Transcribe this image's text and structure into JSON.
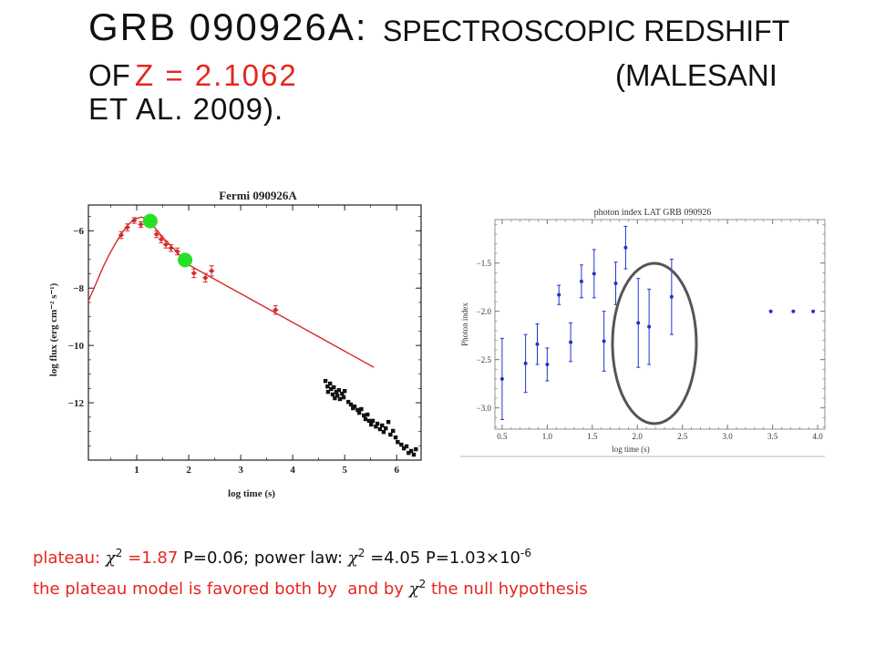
{
  "theme": {
    "accent_red": "#e5261e",
    "text_black": "#111111",
    "lat_blue": "#2233cc",
    "highlight_gray": "#555555"
  },
  "title": {
    "prefix": "GRB 090926A:",
    "subtitle_caps": "SPECTROSCOPIC REDSHIFT",
    "of": "OF",
    "redshift": "Z = 2.1062",
    "citation_start": "(MALESANI",
    "citation_end": "ET AL. 2009)."
  },
  "notes": {
    "line1": {
      "plateau_label": "plateau:",
      "chi_symbol": "χ",
      "chi_exponent": "2",
      "plateau_chi2": "=1.87",
      "plateau_p": "P=0.06;",
      "powerlaw_label": "power law:",
      "powerlaw_chi2": "=4.05",
      "powerlaw_p": "P=1.03×10",
      "powerlaw_p_exponent": "-6"
    },
    "line2": {
      "text_before": "the plateau model is favored both by  and by",
      "chi_symbol": "χ",
      "chi_exponent": "2",
      "text_after": "the null hypothesis"
    }
  },
  "chart_data": [
    {
      "type": "scatter",
      "title": "Fermi 090926A",
      "xlabel": "log time (s)",
      "ylabel": "log flux (erg cm⁻² s⁻¹)",
      "xlim": [
        0.07,
        6.47
      ],
      "ylim": [
        -14,
        -5.1
      ],
      "xticks": [
        1,
        2,
        3,
        4,
        5,
        6
      ],
      "xtick_labels": [
        "1",
        "2",
        "3",
        "4",
        "5",
        "6"
      ],
      "yticks": [
        -6,
        -8,
        -10,
        -12
      ],
      "ytick_labels": [
        "−6",
        "−8",
        "−10",
        "−12"
      ],
      "grid": false,
      "legend": "none",
      "series": [
        {
          "marker": "cross",
          "color": "#d42a2a",
          "x": [
            0.7,
            0.82,
            0.95,
            1.08,
            1.18,
            1.38,
            1.47,
            1.56,
            1.66,
            1.78,
            2.1,
            2.32,
            2.44,
            3.67
          ],
          "y": [
            -6.15,
            -5.88,
            -5.64,
            -5.78,
            -5.62,
            -6.12,
            -6.3,
            -6.48,
            -6.6,
            -6.72,
            -7.48,
            -7.64,
            -7.4,
            -8.76
          ],
          "yerr": [
            0.12,
            0.12,
            0.1,
            0.1,
            0.1,
            0.12,
            0.12,
            0.12,
            0.12,
            0.12,
            0.15,
            0.15,
            0.18,
            0.15
          ]
        },
        {
          "marker": "circle",
          "color": "#26e026",
          "x": [
            1.26,
            1.93
          ],
          "y": [
            -5.66,
            -7.02
          ]
        },
        {
          "marker": "square",
          "color": "#111111",
          "x": [
            4.63,
            4.67,
            4.68,
            4.72,
            4.74,
            4.77,
            4.79,
            4.81,
            4.84,
            4.86,
            4.89,
            4.91,
            4.95,
            4.98,
            5.0,
            5.07,
            5.12,
            5.16,
            5.19,
            5.25,
            5.28,
            5.32,
            5.37,
            5.4,
            5.44,
            5.47,
            5.51,
            5.54,
            5.6,
            5.63,
            5.68,
            5.72,
            5.75,
            5.79,
            5.84,
            5.88,
            5.93,
            5.98,
            6.02,
            6.09,
            6.14,
            6.19,
            6.23,
            6.28,
            6.33,
            6.37
          ],
          "y": [
            -11.24,
            -11.43,
            -11.62,
            -11.33,
            -11.52,
            -11.71,
            -11.46,
            -11.84,
            -11.62,
            -11.75,
            -11.56,
            -11.87,
            -11.68,
            -11.81,
            -11.59,
            -11.97,
            -12.06,
            -12.19,
            -12.13,
            -12.25,
            -12.35,
            -12.22,
            -12.44,
            -12.57,
            -12.41,
            -12.63,
            -12.76,
            -12.63,
            -12.83,
            -12.73,
            -12.92,
            -12.79,
            -13.02,
            -12.89,
            -12.67,
            -13.11,
            -12.98,
            -13.21,
            -13.37,
            -13.46,
            -13.59,
            -13.52,
            -13.75,
            -13.68,
            -13.81,
            -13.62
          ]
        }
      ],
      "model_curve": {
        "color": "#d42a2a",
        "x": [
          0.07,
          0.21,
          0.35,
          0.47,
          0.6,
          0.72,
          0.84,
          0.96,
          1.09,
          1.21,
          1.35,
          1.53,
          1.7,
          1.88,
          1.98,
          5.56
        ],
        "y": [
          -8.44,
          -7.87,
          -7.27,
          -6.83,
          -6.41,
          -6.06,
          -5.78,
          -5.59,
          -5.52,
          -5.62,
          -5.9,
          -6.29,
          -6.6,
          -6.95,
          -7.17,
          -10.76
        ]
      }
    },
    {
      "type": "scatter",
      "title": "photon index LAT GRB 090926",
      "xlabel": "log time (s)",
      "ylabel": "Photon index",
      "xlim": [
        0.42,
        4.08
      ],
      "ylim": [
        -3.22,
        -1.05
      ],
      "xticks": [
        0.5,
        1.0,
        1.5,
        2.0,
        2.5,
        3.0,
        3.5,
        4.0
      ],
      "xtick_labels": [
        "0.5",
        "1.0",
        "1.5",
        "2.0",
        "2.5",
        "3.0",
        "3.5",
        "4.0"
      ],
      "yticks": [
        -1.5,
        -2.0,
        -2.5,
        -3.0
      ],
      "ytick_labels": [
        "−1.5",
        "−2.0",
        "−2.5",
        "−3.0"
      ],
      "grid": false,
      "legend": "none",
      "series": [
        {
          "marker": "dot",
          "color": "#2233cc",
          "x": [
            0.5,
            0.76,
            0.89,
            1.0,
            1.13,
            1.26,
            1.38,
            1.52,
            1.63,
            1.76,
            1.87,
            2.01,
            2.13,
            2.38,
            3.48,
            3.73,
            3.95
          ],
          "y": [
            -2.7,
            -2.54,
            -2.34,
            -2.55,
            -1.83,
            -2.32,
            -1.69,
            -1.61,
            -2.31,
            -1.71,
            -1.34,
            -2.12,
            -2.16,
            -1.85,
            -2.0,
            -2.0,
            -2.0
          ],
          "yerr": [
            0.42,
            0.3,
            0.21,
            0.17,
            0.1,
            0.2,
            0.17,
            0.25,
            0.31,
            0.22,
            0.22,
            0.46,
            0.39,
            0.39,
            0,
            0,
            0
          ]
        }
      ]
    }
  ]
}
